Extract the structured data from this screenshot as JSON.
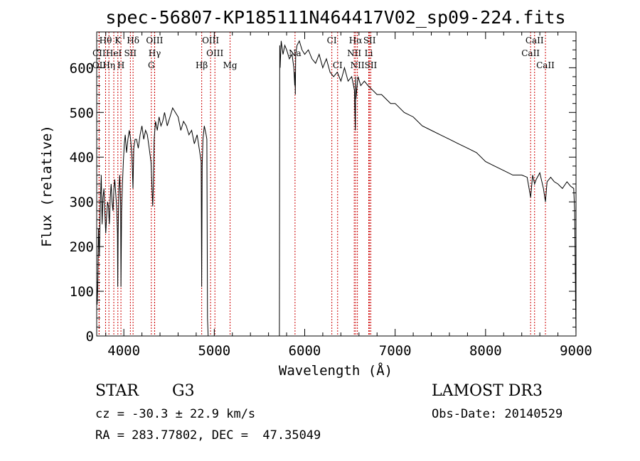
{
  "chart_data": {
    "type": "line",
    "title": "spec-56807-KP185111N464417V02_sp09-224.fits",
    "xlabel": "Wavelength (Å)",
    "ylabel": "Flux (relative)",
    "xlim": [
      3700,
      9000
    ],
    "ylim": [
      0,
      680
    ],
    "xticks": [
      4000,
      5000,
      6000,
      7000,
      8000,
      9000
    ],
    "yticks": [
      0,
      100,
      200,
      300,
      400,
      500,
      600
    ],
    "line_color": "#000000",
    "marker_color": "#cc0000",
    "series": [
      {
        "name": "flux",
        "x": [
          3700,
          3705,
          3712,
          3720,
          3730,
          3740,
          3750,
          3760,
          3770,
          3780,
          3790,
          3800,
          3810,
          3820,
          3830,
          3840,
          3850,
          3860,
          3870,
          3880,
          3890,
          3900,
          3910,
          3920,
          3930,
          3933,
          3937,
          3945,
          3955,
          3965,
          3968,
          3975,
          3985,
          3995,
          4005,
          4015,
          4030,
          4045,
          4060,
          4075,
          4090,
          4101,
          4110,
          4125,
          4140,
          4160,
          4180,
          4200,
          4220,
          4240,
          4260,
          4280,
          4300,
          4310,
          4320,
          4326,
          4335,
          4350,
          4370,
          4390,
          4410,
          4430,
          4450,
          4480,
          4510,
          4540,
          4570,
          4600,
          4630,
          4660,
          4690,
          4720,
          4750,
          4780,
          4810,
          4840,
          4855,
          4861,
          4866,
          4875,
          4890,
          4900,
          4910,
          4918,
          4925,
          4932,
          5720,
          5724,
          5728,
          5740,
          5760,
          5780,
          5800,
          5830,
          5860,
          5880,
          5890,
          5893,
          5896,
          5900,
          5915,
          5940,
          5970,
          6000,
          6040,
          6080,
          6120,
          6160,
          6200,
          6240,
          6280,
          6320,
          6360,
          6400,
          6440,
          6480,
          6520,
          6550,
          6560,
          6563,
          6566,
          6575,
          6590,
          6620,
          6660,
          6700,
          6750,
          6800,
          6850,
          6900,
          6950,
          7000,
          7100,
          7200,
          7300,
          7400,
          7500,
          7600,
          7700,
          7800,
          7900,
          8000,
          8100,
          8200,
          8300,
          8400,
          8460,
          8498,
          8520,
          8542,
          8560,
          8600,
          8640,
          8662,
          8680,
          8720,
          8760,
          8800,
          8850,
          8900,
          8940,
          8975,
          8985,
          8990,
          8995,
          9000
        ],
        "y": [
          140,
          70,
          110,
          240,
          180,
          300,
          360,
          250,
          310,
          330,
          280,
          230,
          270,
          300,
          290,
          250,
          310,
          340,
          300,
          280,
          330,
          350,
          320,
          290,
          230,
          110,
          230,
          330,
          360,
          290,
          110,
          280,
          340,
          390,
          430,
          450,
          410,
          440,
          460,
          440,
          400,
          330,
          420,
          440,
          440,
          420,
          450,
          470,
          440,
          460,
          450,
          420,
          390,
          340,
          290,
          330,
          440,
          480,
          460,
          490,
          470,
          480,
          500,
          470,
          490,
          510,
          500,
          490,
          460,
          480,
          470,
          450,
          460,
          430,
          450,
          410,
          390,
          110,
          380,
          440,
          470,
          460,
          450,
          440,
          40,
          0,
          0,
          650,
          600,
          660,
          630,
          650,
          640,
          620,
          630,
          600,
          560,
          590,
          540,
          630,
          650,
          660,
          640,
          630,
          640,
          620,
          610,
          630,
          600,
          620,
          590,
          580,
          590,
          570,
          600,
          570,
          580,
          550,
          460,
          580,
          530,
          550,
          580,
          560,
          570,
          560,
          550,
          540,
          540,
          530,
          520,
          520,
          500,
          490,
          470,
          460,
          450,
          440,
          430,
          420,
          410,
          390,
          380,
          370,
          360,
          360,
          355,
          310,
          360,
          340,
          350,
          365,
          330,
          300,
          345,
          355,
          345,
          340,
          330,
          345,
          335,
          330,
          280,
          200,
          80,
          0
        ]
      }
    ],
    "line_markers": [
      {
        "name": "Hθ",
        "x": 3798,
        "row": 0
      },
      {
        "name": "CII",
        "x": 3726,
        "row": 1
      },
      {
        "name": "OII",
        "x": 3727,
        "row": 2
      },
      {
        "name": "Hη",
        "x": 3835,
        "row": 2
      },
      {
        "name": "K",
        "x": 3934,
        "row": 0
      },
      {
        "name": "HeI",
        "x": 3889,
        "row": 1
      },
      {
        "name": "H",
        "x": 3968,
        "row": 2
      },
      {
        "name": "SII",
        "x": 4072,
        "row": 1
      },
      {
        "name": "Hδ",
        "x": 4102,
        "row": 0
      },
      {
        "name": "OIII",
        "x": 4340,
        "row": 0
      },
      {
        "name": "Hγ",
        "x": 4341,
        "row": 1
      },
      {
        "name": "G",
        "x": 4304,
        "row": 2
      },
      {
        "name": "OIII",
        "x": 4959,
        "row": 0
      },
      {
        "name": "OIII",
        "x": 5007,
        "row": 1
      },
      {
        "name": "Hβ",
        "x": 4861,
        "row": 2
      },
      {
        "name": "Mg",
        "x": 5175,
        "row": 2
      },
      {
        "name": "Na",
        "x": 5893,
        "row": 1
      },
      {
        "name": "CI",
        "x": 6300,
        "row": 0
      },
      {
        "name": "CI",
        "x": 6364,
        "row": 2
      },
      {
        "name": "Hα",
        "x": 6563,
        "row": 0
      },
      {
        "name": "NII",
        "x": 6548,
        "row": 1
      },
      {
        "name": "NII",
        "x": 6583,
        "row": 2
      },
      {
        "name": "SII",
        "x": 6717,
        "row": 0
      },
      {
        "name": "Li",
        "x": 6708,
        "row": 1
      },
      {
        "name": "SII",
        "x": 6731,
        "row": 2
      },
      {
        "name": "CaII",
        "x": 8542,
        "row": 0
      },
      {
        "name": "CaII",
        "x": 8498,
        "row": 1
      },
      {
        "name": "CaII",
        "x": 8662,
        "row": 2
      }
    ]
  },
  "info": {
    "object_class": "STAR",
    "subclass": "G3",
    "survey": "LAMOST DR3",
    "redshift_text": "cz = -30.3 ± 22.9 km/s",
    "obs_date_text": "Obs-Date: 20140529",
    "coords_text": "RA = 283.77802, DEC =  47.35049"
  }
}
